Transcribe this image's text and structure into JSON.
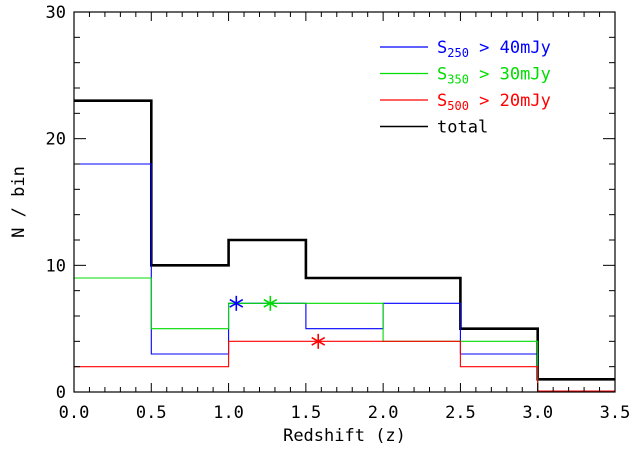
{
  "chart_data": {
    "type": "line",
    "step": true,
    "xlabel": "Redshift (z)",
    "ylabel": "N / bin",
    "xlim": [
      0.0,
      3.5
    ],
    "ylim": [
      0,
      30
    ],
    "x_ticks": [
      "0.0",
      "0.5",
      "1.0",
      "1.5",
      "2.0",
      "2.5",
      "3.0",
      "3.5"
    ],
    "y_ticks": [
      "0",
      "10",
      "20",
      "30"
    ],
    "grid": false,
    "legend_position": "top-right",
    "bin_edges": [
      0.0,
      0.5,
      1.0,
      1.5,
      2.0,
      2.5,
      3.0,
      3.5
    ],
    "series": [
      {
        "name": "total",
        "legend_parts": {
          "pre": "total",
          "sub": "",
          "post": ""
        },
        "color": "#000000",
        "values": [
          23,
          10,
          12,
          9,
          9,
          5,
          1
        ]
      },
      {
        "name": "S250 > 40mJy",
        "legend_parts": {
          "pre": "S",
          "sub": "250",
          "post": " > 40mJy"
        },
        "color": "#0000ff",
        "values": [
          18,
          3,
          7,
          5,
          7,
          3,
          0
        ],
        "median": {
          "x": 1.05,
          "y": 7
        }
      },
      {
        "name": "S350 > 30mJy",
        "legend_parts": {
          "pre": "S",
          "sub": "350",
          "post": " > 30mJy"
        },
        "color": "#00dd00",
        "values": [
          9,
          5,
          7,
          7,
          4,
          4,
          0
        ],
        "median": {
          "x": 1.27,
          "y": 7
        }
      },
      {
        "name": "S500 > 20mJy",
        "legend_parts": {
          "pre": "S",
          "sub": "500",
          "post": " > 20mJy"
        },
        "color": "#ff0000",
        "values": [
          2,
          2,
          4,
          4,
          4,
          2,
          0
        ],
        "median": {
          "x": 1.58,
          "y": 4
        }
      }
    ],
    "legend_order": [
      "S250 > 40mJy",
      "S350 > 30mJy",
      "S500 > 20mJy",
      "total"
    ]
  }
}
